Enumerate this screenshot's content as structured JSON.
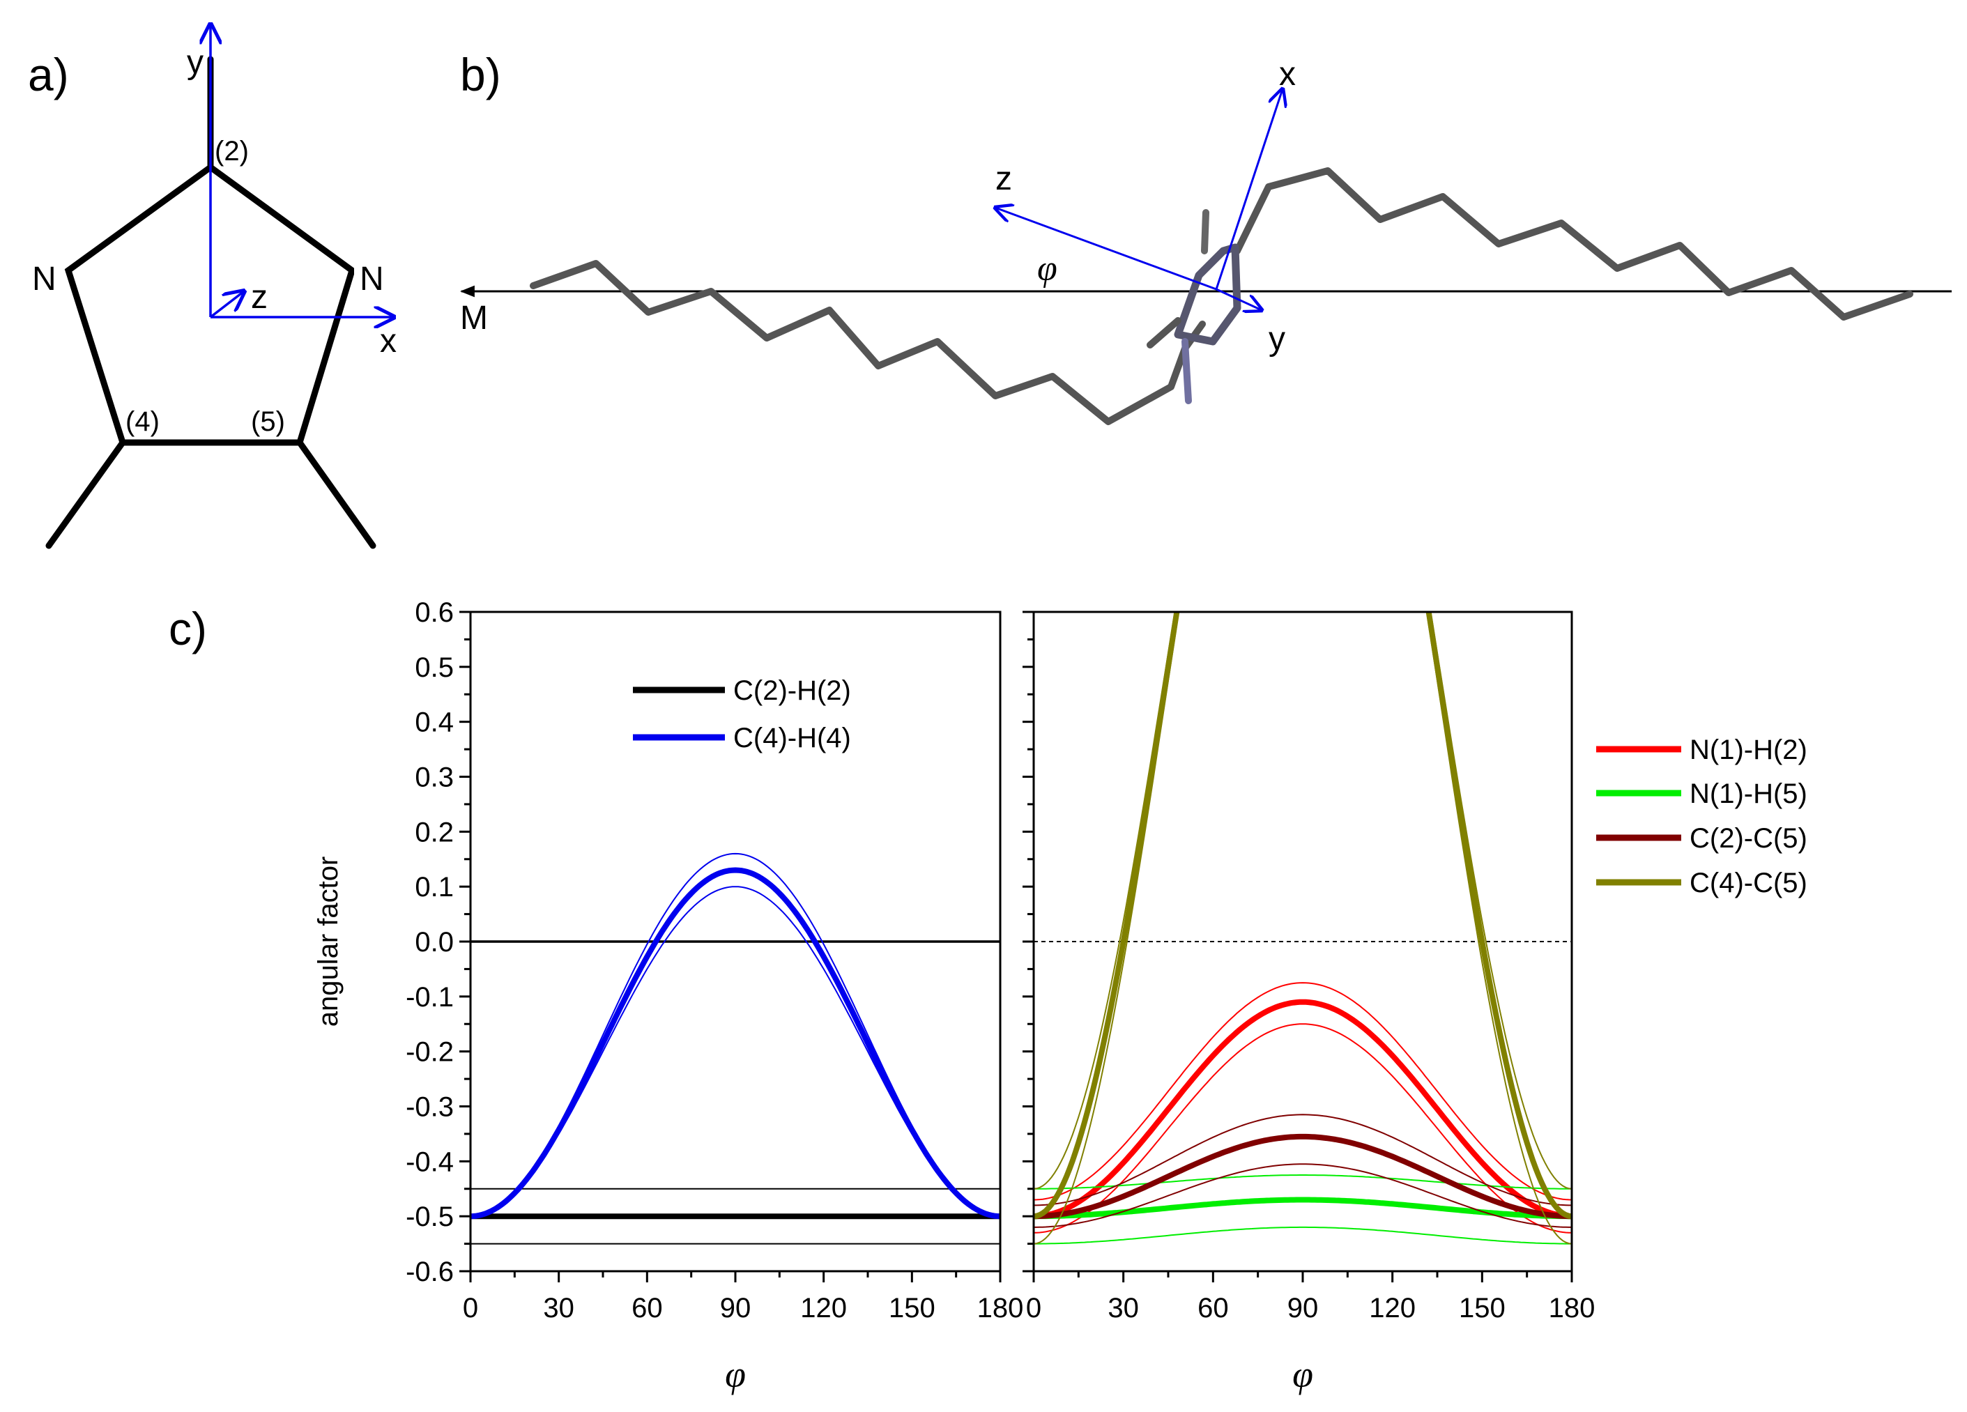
{
  "panel_labels": {
    "a": "a)",
    "b": "b)",
    "c": "c)"
  },
  "panel_a": {
    "axis_labels": {
      "x": "x",
      "y": "y",
      "z": "z"
    },
    "atom_labels": {
      "n_left": "N",
      "n_right": "N",
      "c2": "(2)",
      "c4": "(4)",
      "c5": "(5)"
    }
  },
  "panel_b": {
    "axis_labels": {
      "x": "x",
      "y": "y",
      "z": "z"
    },
    "phi": "φ",
    "m_label": "M"
  },
  "colors": {
    "black": "#000000",
    "blue": "#0000ee",
    "red": "#ff0000",
    "green": "#00ee00",
    "dark_red": "#800000",
    "olive": "#808000",
    "chain": "#555555"
  },
  "chart_data": [
    {
      "type": "line",
      "title": "",
      "xlabel": "φ",
      "ylabel": "angular factor",
      "xlim": [
        0,
        180
      ],
      "ylim": [
        -0.6,
        0.6
      ],
      "xticks": [
        "0",
        "30",
        "60",
        "90",
        "120",
        "150",
        "180"
      ],
      "yticks": [
        "-0.6",
        "-0.5",
        "-0.4",
        "-0.3",
        "-0.2",
        "-0.1",
        "0.0",
        "0.1",
        "0.2",
        "0.3",
        "0.4",
        "0.5",
        "0.6"
      ],
      "legend": [
        "C(2)-H(2)",
        "C(4)-H(4)"
      ],
      "legend_position": "top-right",
      "series": [
        {
          "name": "C(2)-H(2)",
          "color": "#000000",
          "center": -0.5,
          "amplitude": 0.0,
          "band": [
            [
              -0.45,
              0.0
            ],
            [
              -0.55,
              0.0
            ]
          ]
        },
        {
          "name": "C(4)-H(4)",
          "color": "#0000ee",
          "center": -0.5,
          "amplitude": 0.63,
          "band": [
            [
              -0.5,
              0.66
            ],
            [
              -0.5,
              0.6
            ]
          ]
        }
      ],
      "reference_line": {
        "y": 0.0,
        "style": "solid"
      }
    },
    {
      "type": "line",
      "title": "",
      "xlabel": "φ",
      "ylabel": "",
      "xlim": [
        0,
        180
      ],
      "ylim": [
        -0.6,
        0.6
      ],
      "xticks": [
        "0",
        "30",
        "60",
        "90",
        "120",
        "150",
        "180"
      ],
      "legend": [
        "N(1)-H(2)",
        "N(1)-H(5)",
        "C(2)-C(5)",
        "C(4)-C(5)"
      ],
      "legend_position": "outside-right",
      "series": [
        {
          "name": "N(1)-H(2)",
          "color": "#ff0000",
          "center": -0.5,
          "amplitude": 0.39,
          "band": [
            [
              -0.47,
              0.395
            ],
            [
              -0.53,
              0.38
            ]
          ]
        },
        {
          "name": "N(1)-H(5)",
          "color": "#00ee00",
          "center": -0.5,
          "amplitude": 0.03,
          "band": [
            [
              -0.45,
              0.025
            ],
            [
              -0.55,
              0.03
            ]
          ]
        },
        {
          "name": "C(2)-C(5)",
          "color": "#800000",
          "center": -0.5,
          "amplitude": 0.145,
          "band": [
            [
              -0.48,
              0.165
            ],
            [
              -0.52,
              0.115
            ]
          ]
        },
        {
          "name": "C(4)-C(5)",
          "color": "#808000",
          "center": -0.5,
          "amplitude": 2.0,
          "band": [
            [
              -0.45,
              1.95
            ],
            [
              -0.55,
              2.05
            ]
          ]
        }
      ],
      "reference_line": {
        "y": 0.0,
        "style": "dashed"
      }
    }
  ]
}
